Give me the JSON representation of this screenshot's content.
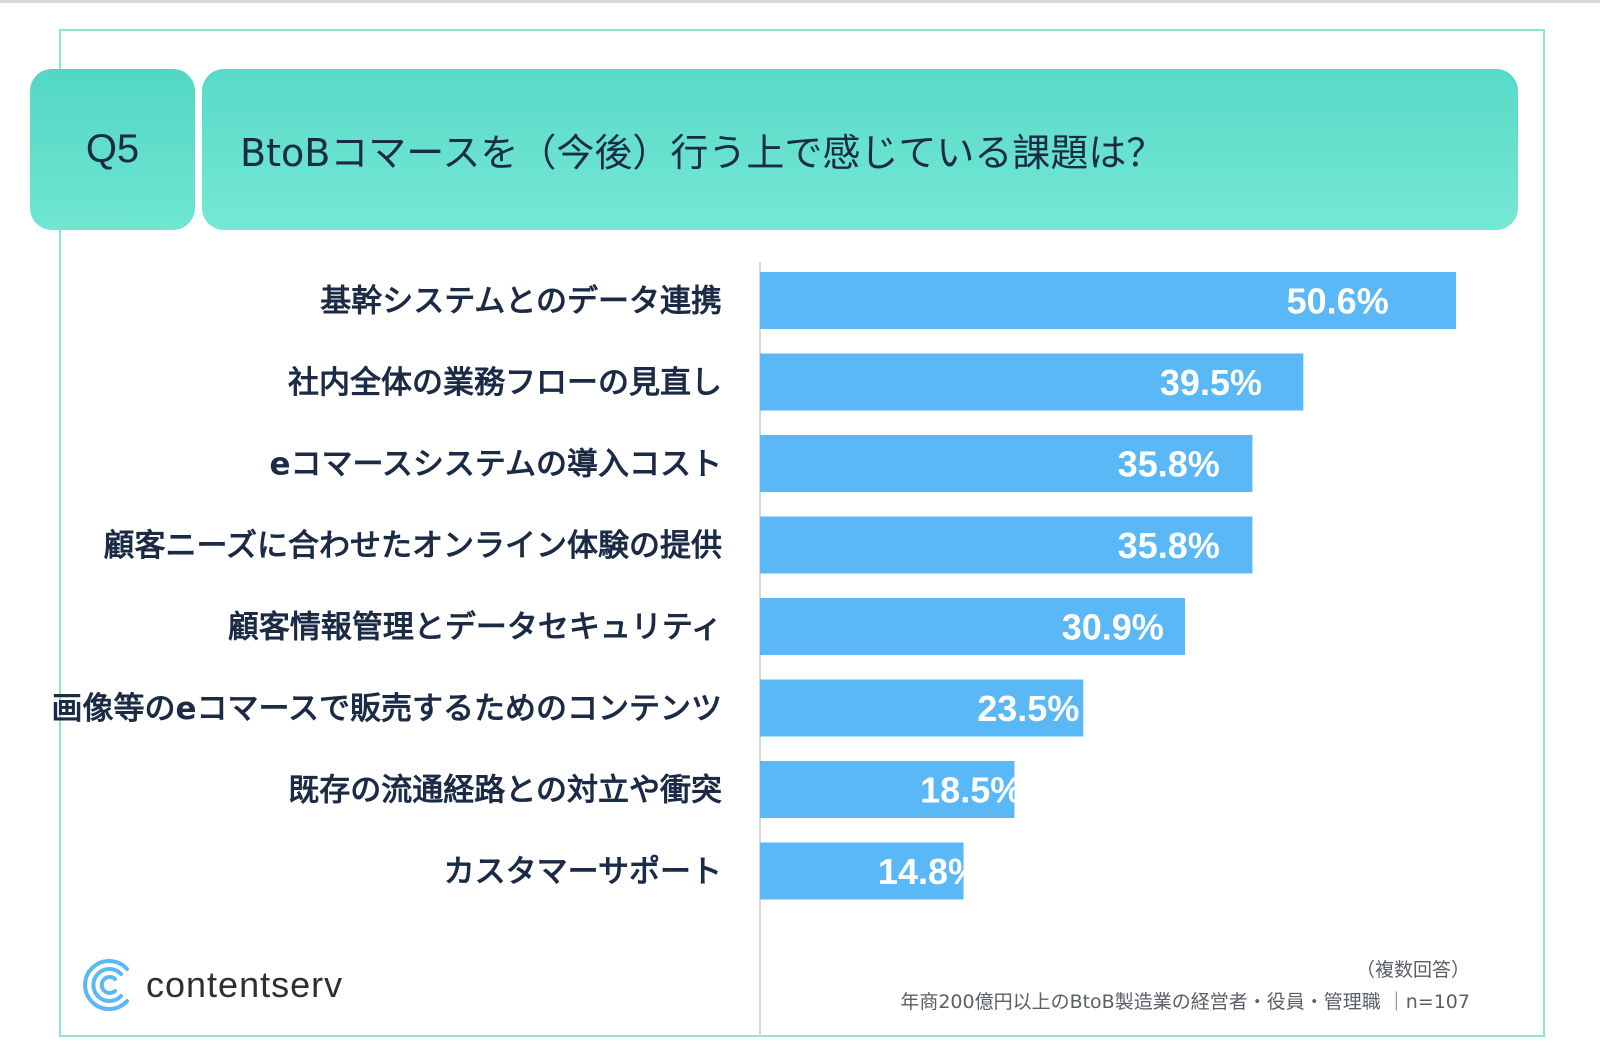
{
  "header": {
    "question": "Q5",
    "title": "BtoBコマースを（今後）行う上で感じている課題は？"
  },
  "colors": {
    "bar": "#59b8f5",
    "label_text": "#1b2b45",
    "value_text": "#ffffff",
    "header_bg": "#6fe6d1",
    "frame": "#8fe3cf",
    "brand": "#59b8f5"
  },
  "chart_data": {
    "type": "bar",
    "orientation": "horizontal",
    "title": "BtoBコマースを（今後）行う上で感じている課題は？",
    "categories": [
      "基幹システムとのデータ連携",
      "社内全体の業務フローの見直し",
      "eコマースシステムの導入コスト",
      "顧客ニーズに合わせたオンライン体験の提供",
      "顧客情報管理とデータセキュリティ",
      "画像等のeコマースで販売するためのコンテンツ",
      "既存の流通経路との対立や衝突",
      "カスタマーサポート"
    ],
    "values": [
      50.6,
      39.5,
      35.8,
      35.8,
      30.9,
      23.5,
      18.5,
      14.8
    ],
    "value_labels": [
      "50.6%",
      "39.5%",
      "35.8%",
      "35.8%",
      "30.9%",
      "23.5%",
      "18.5%",
      "14.8%"
    ],
    "unit": "%",
    "xlim": [
      0,
      50.6
    ],
    "grid": false,
    "legend": "none"
  },
  "footer": {
    "note_multiple": "（複数回答）",
    "note_sample": "年商200億円以上のBtoB製造業の経営者・役員・管理職 ｜n=107",
    "brand_name": "contentserv"
  }
}
